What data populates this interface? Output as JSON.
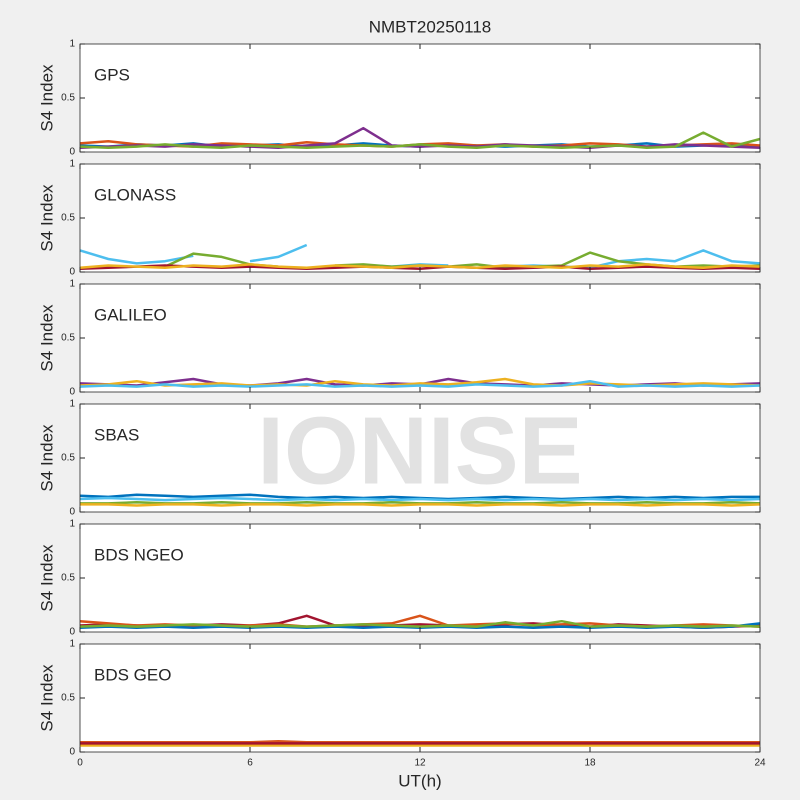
{
  "title": "NMBT20250118",
  "watermark": "IONISE",
  "x_label": "UT(h)",
  "chart_data": [
    {
      "type": "line",
      "label": "GPS",
      "y_label": "S4 Index",
      "xlim": [
        0,
        24
      ],
      "xticks": [
        0,
        6,
        12,
        18,
        24
      ],
      "ylim": [
        0,
        1
      ],
      "yticks": [
        0,
        0.5,
        1
      ],
      "x": [
        0,
        1,
        2,
        3,
        4,
        5,
        6,
        7,
        8,
        9,
        10,
        11,
        12,
        13,
        14,
        15,
        16,
        17,
        18,
        19,
        20,
        21,
        22,
        23,
        24
      ],
      "series": [
        {
          "color": "#0072BD",
          "values": [
            0.06,
            0.05,
            0.07,
            0.06,
            0.08,
            0.05,
            0.06,
            0.07,
            0.05,
            0.06,
            0.08,
            0.06,
            0.05,
            0.07,
            0.06,
            0.05,
            0.06,
            0.07,
            0.05,
            0.06,
            0.08,
            0.05,
            0.06,
            0.07,
            0.05
          ]
        },
        {
          "color": "#D95319",
          "values": [
            0.08,
            0.1,
            0.07,
            0.06,
            0.05,
            0.08,
            0.07,
            0.06,
            0.09,
            0.07,
            0.06,
            0.05,
            0.07,
            0.08,
            0.06,
            0.07,
            0.05,
            0.06,
            0.08,
            0.07,
            0.05,
            0.06,
            0.07,
            0.08,
            0.06
          ]
        },
        {
          "color": "#7E2F8E",
          "values": [
            0.04,
            0.05,
            0.06,
            0.05,
            0.07,
            0.06,
            0.05,
            0.04,
            0.06,
            0.08,
            0.22,
            0.06,
            0.05,
            0.06,
            0.05,
            0.07,
            0.06,
            0.05,
            0.04,
            0.06,
            0.05,
            0.07,
            0.06,
            0.05,
            0.04
          ]
        },
        {
          "color": "#77AC30",
          "values": [
            0.05,
            0.04,
            0.05,
            0.07,
            0.05,
            0.04,
            0.06,
            0.05,
            0.04,
            0.05,
            0.06,
            0.05,
            0.07,
            0.05,
            0.04,
            0.06,
            0.05,
            0.04,
            0.05,
            0.06,
            0.04,
            0.05,
            0.18,
            0.05,
            0.12
          ]
        }
      ]
    },
    {
      "type": "line",
      "label": "GLONASS",
      "y_label": "S4 Index",
      "xlim": [
        0,
        24
      ],
      "xticks": [
        0,
        6,
        12,
        18,
        24
      ],
      "ylim": [
        0,
        1
      ],
      "yticks": [
        0,
        0.5,
        1
      ],
      "x": [
        0,
        1,
        2,
        3,
        4,
        5,
        6,
        7,
        8,
        9,
        10,
        11,
        12,
        13,
        14,
        15,
        16,
        17,
        18,
        19,
        20,
        21,
        22,
        23,
        24
      ],
      "series": [
        {
          "color": "#4DBEEE",
          "values": [
            0.2,
            0.12,
            0.08,
            0.1,
            0.15,
            null,
            0.1,
            0.14,
            0.25,
            null,
            0.06,
            0.05,
            0.07,
            0.06,
            null,
            0.05,
            0.06,
            0.05,
            0.04,
            0.1,
            0.12,
            0.1,
            0.2,
            0.1,
            0.08
          ]
        },
        {
          "color": "#77AC30",
          "values": [
            null,
            null,
            null,
            0.05,
            0.17,
            0.14,
            0.07,
            0.05,
            null,
            0.06,
            0.07,
            0.05,
            0.06,
            0.05,
            0.07,
            0.04,
            0.05,
            0.06,
            0.18,
            0.1,
            0.07,
            0.05,
            0.06,
            0.05,
            0.06
          ]
        },
        {
          "color": "#A2142F",
          "values": [
            0.03,
            0.04,
            0.05,
            0.06,
            0.05,
            0.04,
            0.05,
            0.04,
            0.03,
            0.04,
            0.05,
            0.04,
            0.03,
            0.05,
            0.04,
            0.03,
            0.04,
            0.05,
            0.03,
            0.04,
            0.05,
            0.04,
            0.03,
            0.04,
            0.03
          ]
        },
        {
          "color": "#EDB120",
          "values": [
            0.04,
            0.06,
            0.05,
            0.04,
            0.06,
            0.05,
            0.07,
            0.05,
            0.04,
            0.06,
            0.05,
            0.04,
            0.06,
            0.05,
            0.04,
            0.06,
            0.05,
            0.04,
            0.06,
            0.05,
            0.07,
            0.05,
            0.04,
            0.06,
            0.05
          ]
        }
      ]
    },
    {
      "type": "line",
      "label": "GALILEO",
      "y_label": "S4 Index",
      "xlim": [
        0,
        24
      ],
      "xticks": [
        0,
        6,
        12,
        18,
        24
      ],
      "ylim": [
        0,
        1
      ],
      "yticks": [
        0,
        0.5,
        1
      ],
      "x": [
        0,
        1,
        2,
        3,
        4,
        5,
        6,
        7,
        8,
        9,
        10,
        11,
        12,
        13,
        14,
        15,
        16,
        17,
        18,
        19,
        20,
        21,
        22,
        23,
        24
      ],
      "series": [
        {
          "color": "#7E2F8E",
          "values": [
            0.08,
            0.07,
            0.06,
            0.09,
            0.12,
            0.07,
            0.06,
            0.08,
            0.12,
            0.07,
            0.06,
            0.08,
            0.07,
            0.12,
            0.08,
            0.07,
            0.06,
            0.08,
            0.07,
            0.06,
            0.07,
            0.08,
            0.06,
            0.07,
            0.08
          ]
        },
        {
          "color": "#EDB120",
          "values": [
            0.06,
            0.07,
            0.1,
            0.06,
            0.07,
            0.08,
            0.06,
            0.07,
            0.06,
            0.1,
            0.07,
            0.06,
            0.08,
            0.07,
            0.09,
            0.12,
            0.07,
            0.06,
            0.08,
            0.07,
            0.06,
            0.07,
            0.08,
            0.07,
            0.06
          ]
        },
        {
          "color": "#4DBEEE",
          "values": [
            0.05,
            0.06,
            0.05,
            0.07,
            0.05,
            0.06,
            0.05,
            0.06,
            0.07,
            0.05,
            0.06,
            0.05,
            0.06,
            0.05,
            0.07,
            0.06,
            0.05,
            0.06,
            0.1,
            0.05,
            0.06,
            0.05,
            0.06,
            0.05,
            0.06
          ]
        }
      ]
    },
    {
      "type": "line",
      "label": "SBAS",
      "y_label": "S4 Index",
      "xlim": [
        0,
        24
      ],
      "xticks": [
        0,
        6,
        12,
        18,
        24
      ],
      "ylim": [
        0,
        1
      ],
      "yticks": [
        0,
        0.5,
        1
      ],
      "x": [
        0,
        1,
        2,
        3,
        4,
        5,
        6,
        7,
        8,
        9,
        10,
        11,
        12,
        13,
        14,
        15,
        16,
        17,
        18,
        19,
        20,
        21,
        22,
        23,
        24
      ],
      "series": [
        {
          "color": "#0072BD",
          "values": [
            0.15,
            0.14,
            0.16,
            0.15,
            0.14,
            0.15,
            0.16,
            0.14,
            0.13,
            0.14,
            0.13,
            0.14,
            0.13,
            0.12,
            0.13,
            0.14,
            0.13,
            0.12,
            0.13,
            0.14,
            0.13,
            0.14,
            0.13,
            0.14,
            0.14
          ]
        },
        {
          "color": "#4DBEEE",
          "values": [
            0.12,
            0.13,
            0.12,
            0.11,
            0.12,
            0.13,
            0.12,
            0.11,
            0.12,
            0.11,
            0.12,
            0.11,
            0.12,
            0.11,
            0.12,
            0.11,
            0.12,
            0.11,
            0.12,
            0.11,
            0.12,
            0.11,
            0.12,
            0.11,
            0.12
          ]
        },
        {
          "color": "#77AC30",
          "values": [
            0.08,
            0.08,
            0.09,
            0.08,
            0.08,
            0.09,
            0.08,
            0.08,
            0.09,
            0.08,
            0.08,
            0.09,
            0.08,
            0.08,
            0.09,
            0.08,
            0.08,
            0.09,
            0.08,
            0.08,
            0.09,
            0.08,
            0.08,
            0.09,
            0.08
          ]
        },
        {
          "color": "#EDB120",
          "values": [
            0.07,
            0.07,
            0.06,
            0.07,
            0.07,
            0.06,
            0.07,
            0.07,
            0.06,
            0.07,
            0.07,
            0.06,
            0.07,
            0.07,
            0.06,
            0.07,
            0.07,
            0.06,
            0.07,
            0.07,
            0.06,
            0.07,
            0.07,
            0.06,
            0.07
          ]
        }
      ]
    },
    {
      "type": "line",
      "label": "BDS NGEO",
      "y_label": "S4 Index",
      "xlim": [
        0,
        24
      ],
      "xticks": [
        0,
        6,
        12,
        18,
        24
      ],
      "ylim": [
        0,
        1
      ],
      "yticks": [
        0,
        0.5,
        1
      ],
      "x": [
        0,
        1,
        2,
        3,
        4,
        5,
        6,
        7,
        8,
        9,
        10,
        11,
        12,
        13,
        14,
        15,
        16,
        17,
        18,
        19,
        20,
        21,
        22,
        23,
        24
      ],
      "series": [
        {
          "color": "#A2142F",
          "values": [
            0.06,
            0.07,
            0.06,
            0.05,
            0.06,
            0.07,
            0.06,
            0.08,
            0.15,
            0.06,
            0.05,
            0.06,
            0.07,
            0.06,
            0.05,
            0.07,
            0.08,
            0.06,
            0.05,
            0.07,
            0.06,
            0.05,
            0.04,
            0.05,
            0.06
          ]
        },
        {
          "color": "#D95319",
          "values": [
            0.1,
            0.08,
            0.06,
            0.07,
            0.06,
            0.05,
            0.06,
            0.07,
            0.05,
            0.06,
            0.07,
            0.08,
            0.15,
            0.06,
            0.07,
            0.08,
            0.06,
            0.07,
            0.08,
            0.06,
            0.05,
            0.06,
            0.07,
            0.06,
            0.05
          ]
        },
        {
          "color": "#0072BD",
          "values": [
            0.04,
            0.05,
            0.04,
            0.05,
            0.04,
            0.05,
            0.04,
            0.05,
            0.04,
            0.05,
            0.04,
            0.05,
            0.04,
            0.05,
            0.04,
            0.05,
            0.04,
            0.05,
            0.04,
            0.05,
            0.04,
            0.05,
            0.04,
            0.05,
            0.08
          ]
        },
        {
          "color": "#77AC30",
          "values": [
            0.05,
            0.06,
            0.05,
            0.06,
            0.07,
            0.06,
            0.05,
            0.06,
            0.05,
            0.06,
            0.07,
            0.06,
            0.05,
            0.06,
            0.05,
            0.09,
            0.06,
            0.1,
            0.05,
            0.06,
            0.05,
            0.06,
            0.05,
            0.06,
            0.05
          ]
        }
      ]
    },
    {
      "type": "line",
      "label": "BDS GEO",
      "y_label": "S4 Index",
      "xlim": [
        0,
        24
      ],
      "xticks": [
        0,
        6,
        12,
        18,
        24
      ],
      "ylim": [
        0,
        1
      ],
      "yticks": [
        0,
        0.5,
        1
      ],
      "x": [
        0,
        1,
        2,
        3,
        4,
        5,
        6,
        7,
        8,
        9,
        10,
        11,
        12,
        13,
        14,
        15,
        16,
        17,
        18,
        19,
        20,
        21,
        22,
        23,
        24
      ],
      "series": [
        {
          "color": "#D95319",
          "values": [
            0.09,
            0.09,
            0.09,
            0.09,
            0.09,
            0.09,
            0.09,
            0.1,
            0.09,
            0.09,
            0.09,
            0.09,
            0.09,
            0.09,
            0.09,
            0.09,
            0.09,
            0.09,
            0.09,
            0.09,
            0.09,
            0.09,
            0.09,
            0.09,
            0.09
          ]
        },
        {
          "color": "#EDB120",
          "values": [
            0.06,
            0.06,
            0.06,
            0.06,
            0.06,
            0.06,
            0.06,
            0.06,
            0.06,
            0.06,
            0.06,
            0.06,
            0.06,
            0.06,
            0.06,
            0.06,
            0.06,
            0.06,
            0.06,
            0.06,
            0.06,
            0.06,
            0.06,
            0.06,
            0.06
          ]
        },
        {
          "color": "#A2142F",
          "values": [
            0.08,
            0.08,
            0.08,
            0.08,
            0.08,
            0.08,
            0.08,
            0.08,
            0.08,
            0.08,
            0.08,
            0.08,
            0.08,
            0.08,
            0.08,
            0.08,
            0.08,
            0.08,
            0.08,
            0.08,
            0.08,
            0.08,
            0.08,
            0.08,
            0.08
          ]
        }
      ]
    }
  ]
}
